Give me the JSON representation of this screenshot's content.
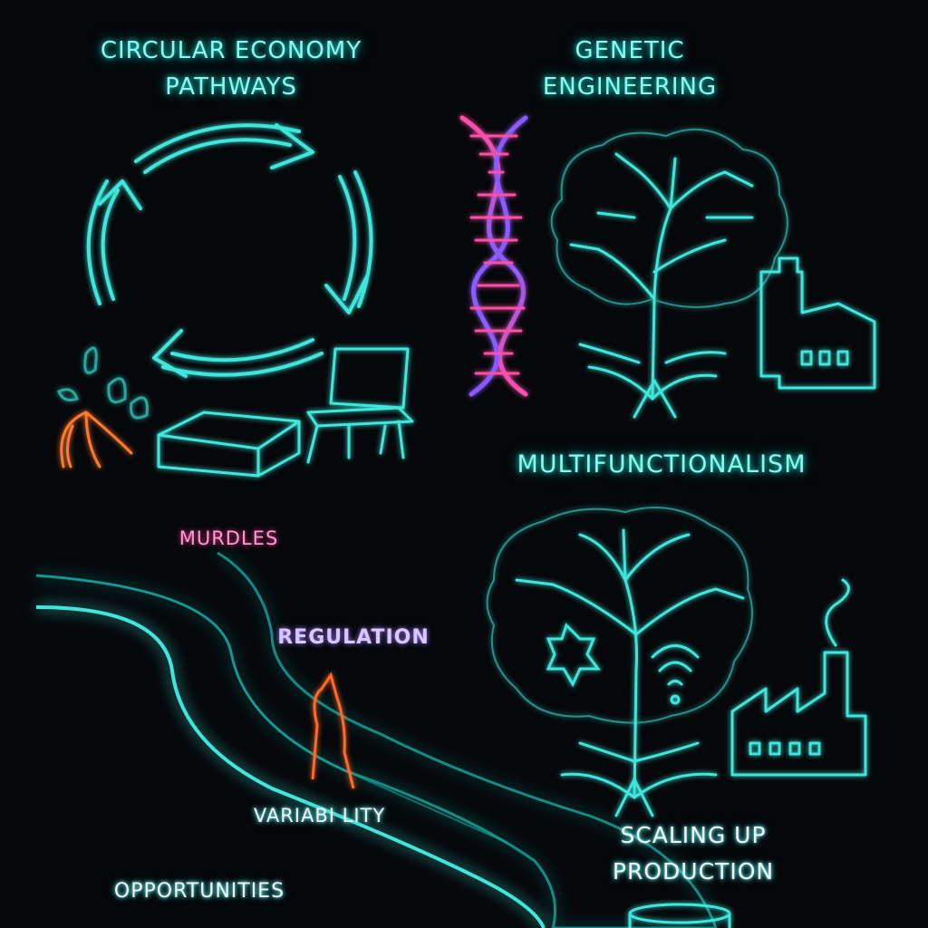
{
  "labels": {
    "circular": "CIRCULAR ECONOMY\nPATHWAYS",
    "genetic": "GENETIC\nENGINEERING",
    "multi": "MULTIFUNCTIONALISM",
    "murdles": "MURDLES",
    "regulation": "REGULATION",
    "variability": "VARIABI LITY",
    "opportunities": "OPPORTUNITIES",
    "scaling": "SCALING UP\nPRODUCTION"
  },
  "icons": [
    "cycle-arrows-icon",
    "leaves-icon",
    "banana-peel-icon",
    "box-icon",
    "chair-icon",
    "dna-icon",
    "tree-icon",
    "factory-icon",
    "medical-cross-icon",
    "wifi-icon",
    "road-icon",
    "barrier-icon",
    "flame-icon",
    "container-icon"
  ],
  "colors": {
    "background": "#05070a",
    "cyan": "#3fe6dc",
    "pink": "#ff4fa3",
    "purple": "#8a5cff",
    "orange": "#ff7a2e"
  }
}
